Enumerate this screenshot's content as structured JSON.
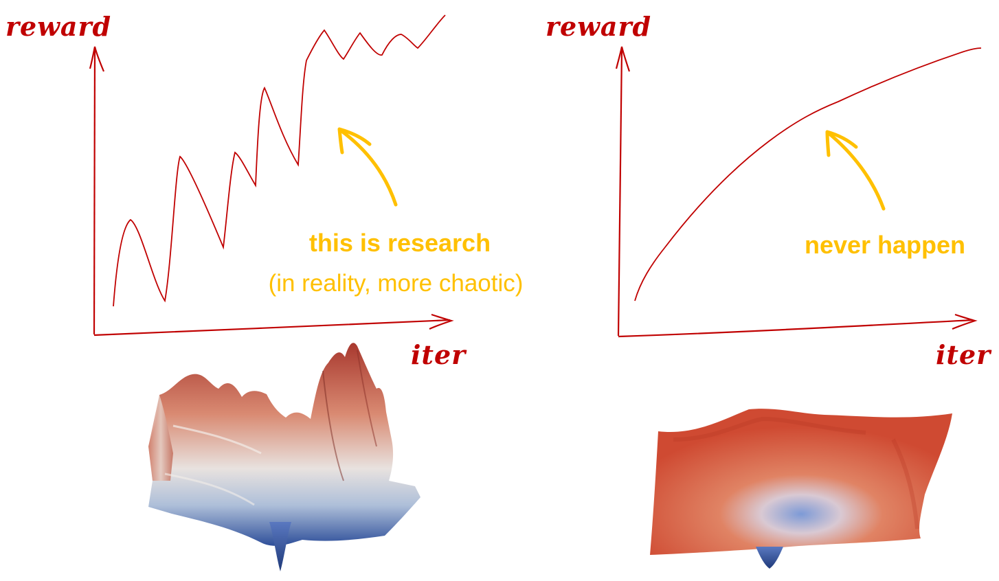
{
  "colors": {
    "ink": "#c00000",
    "annotation": "#ffc000",
    "valley_low": "#3a5da8",
    "surface_high": "#c8402c"
  },
  "left_panel": {
    "y_label": "reward",
    "x_label": "iter",
    "annotation_bold": "this is research",
    "annotation_sub": "(in reality, more chaotic)",
    "landscape_icon": "rugged-loss-landscape"
  },
  "right_panel": {
    "y_label": "reward",
    "x_label": "iter",
    "annotation_bold": "never happen",
    "landscape_icon": "smooth-loss-landscape"
  }
}
